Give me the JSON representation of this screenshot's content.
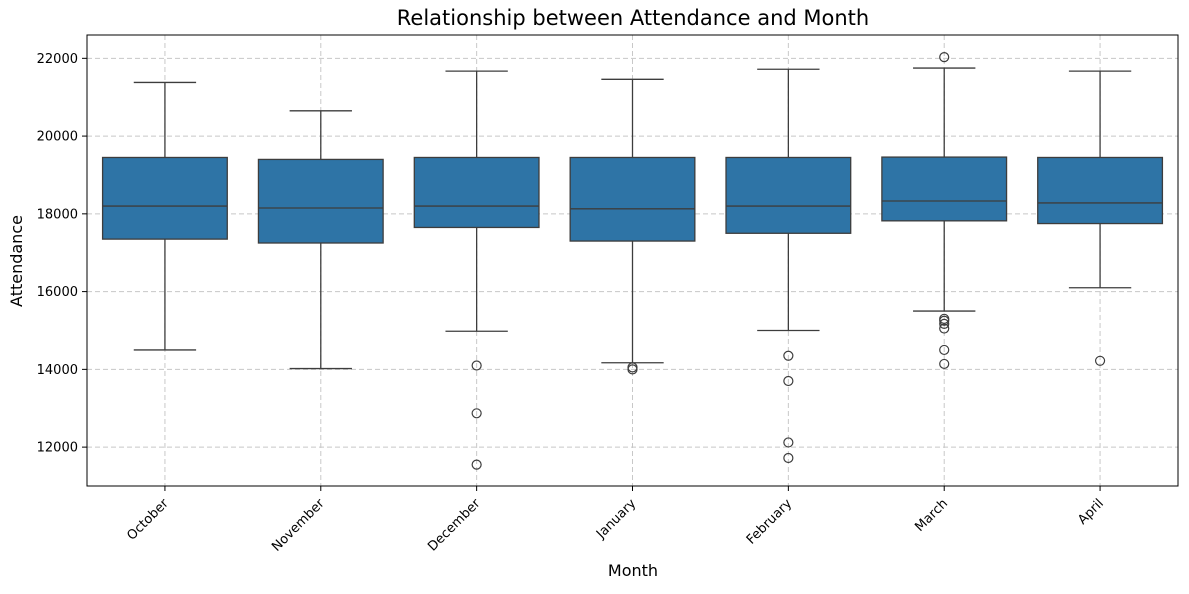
{
  "chart_data": {
    "type": "box",
    "title": "Relationship between Attendance and Month",
    "xlabel": "Month",
    "ylabel": "Attendance",
    "ylim": [
      11000,
      22600
    ],
    "yticks": [
      12000,
      14000,
      16000,
      18000,
      20000,
      22000
    ],
    "ytick_labels": [
      "12000",
      "14000",
      "16000",
      "18000",
      "20000",
      "22000"
    ],
    "grid": true,
    "colors": {
      "box_fill": "#2e74a6",
      "box_stroke": "#3d3d3d",
      "grid": "#c8c8c8"
    },
    "categories": [
      "October",
      "November",
      "December",
      "January",
      "February",
      "March",
      "April"
    ],
    "boxes": [
      {
        "category": "October",
        "whisker_low": 14500,
        "q1": 17350,
        "median": 18200,
        "q3": 19450,
        "whisker_high": 21380,
        "outliers": []
      },
      {
        "category": "November",
        "whisker_low": 14020,
        "q1": 17250,
        "median": 18150,
        "q3": 19400,
        "whisker_high": 20650,
        "outliers": []
      },
      {
        "category": "December",
        "whisker_low": 14980,
        "q1": 17650,
        "median": 18200,
        "q3": 19450,
        "whisker_high": 21670,
        "outliers": [
          14100,
          12870,
          11550
        ]
      },
      {
        "category": "January",
        "whisker_low": 14170,
        "q1": 17300,
        "median": 18130,
        "q3": 19450,
        "whisker_high": 21460,
        "outliers": [
          14050,
          14000
        ]
      },
      {
        "category": "February",
        "whisker_low": 15000,
        "q1": 17500,
        "median": 18200,
        "q3": 19450,
        "whisker_high": 21720,
        "outliers": [
          14350,
          13700,
          12120,
          11720
        ]
      },
      {
        "category": "March",
        "whisker_low": 15500,
        "q1": 17820,
        "median": 18330,
        "q3": 19460,
        "whisker_high": 21750,
        "outliers": [
          22030,
          15300,
          15250,
          15170,
          15050,
          14500,
          14140
        ]
      },
      {
        "category": "April",
        "whisker_low": 16100,
        "q1": 17750,
        "median": 18280,
        "q3": 19450,
        "whisker_high": 21670,
        "outliers": [
          14220
        ]
      }
    ]
  }
}
